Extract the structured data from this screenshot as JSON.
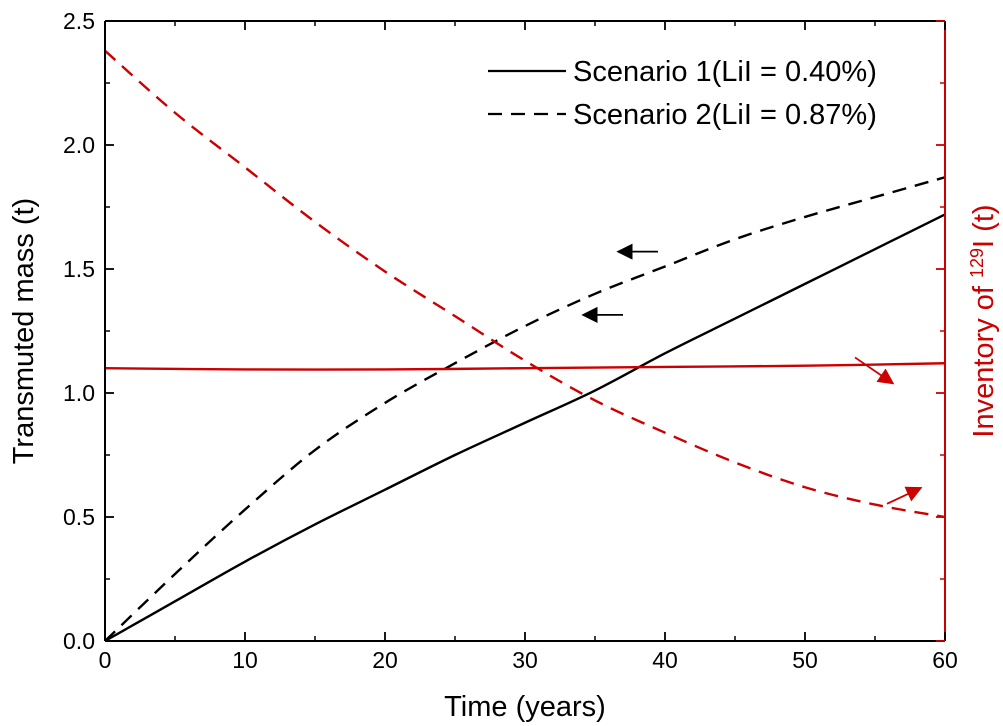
{
  "chart_data": {
    "type": "line",
    "title": "",
    "xlabel": "Time (years)",
    "ylabel_left": "Transmuted mass (t)",
    "ylabel_right": {
      "prefix": "Inventory of ",
      "superscript": "129",
      "suffix": "I (t)"
    },
    "xlim": [
      0,
      60
    ],
    "ylim_left": [
      0,
      2.5
    ],
    "x_ticks": [
      "0",
      "10",
      "20",
      "30",
      "40",
      "50",
      "60"
    ],
    "y_ticks_left": [
      "0.0",
      "0.5",
      "1.0",
      "1.5",
      "2.0",
      "2.5"
    ],
    "grid": false,
    "legend_position": "top-right",
    "legend": [
      {
        "label": "Scenario 1(LiI = 0.40%)",
        "style": "solid"
      },
      {
        "label": "Scenario 2(LiI = 0.87%)",
        "style": "dashed"
      }
    ],
    "colors": {
      "axis_left": "#000000",
      "axis_right": "#cc0000"
    },
    "series": [
      {
        "name": "Scenario 1 transmuted mass",
        "axis": "left",
        "color": "#000000",
        "style": "solid",
        "x": [
          0,
          5,
          10,
          15,
          20,
          25,
          30,
          35,
          40,
          45,
          50,
          55,
          60
        ],
        "y": [
          0,
          0.16,
          0.32,
          0.47,
          0.61,
          0.75,
          0.88,
          1.01,
          1.16,
          1.3,
          1.44,
          1.58,
          1.72
        ]
      },
      {
        "name": "Scenario 2 transmuted mass",
        "axis": "left",
        "color": "#000000",
        "style": "dashed",
        "x": [
          0,
          5,
          10,
          15,
          20,
          25,
          30,
          35,
          40,
          45,
          50,
          55,
          60
        ],
        "y": [
          0,
          0.27,
          0.53,
          0.77,
          0.96,
          1.12,
          1.27,
          1.4,
          1.51,
          1.62,
          1.71,
          1.79,
          1.87
        ]
      },
      {
        "name": "Scenario 1 inventory of 129I",
        "axis": "right",
        "color": "#cc0000",
        "style": "solid",
        "x": [
          0,
          10,
          20,
          30,
          40,
          50,
          60
        ],
        "y": [
          1.1,
          1.095,
          1.095,
          1.1,
          1.105,
          1.11,
          1.12
        ]
      },
      {
        "name": "Scenario 2 inventory of 129I",
        "axis": "right",
        "color": "#cc0000",
        "style": "dashed",
        "x": [
          0,
          5,
          10,
          15,
          20,
          25,
          30,
          35,
          40,
          45,
          50,
          55,
          60
        ],
        "y": [
          2.38,
          2.13,
          1.91,
          1.69,
          1.49,
          1.31,
          1.13,
          0.97,
          0.84,
          0.72,
          0.62,
          0.55,
          0.5
        ]
      }
    ],
    "annotations": [
      {
        "type": "arrow",
        "color": "#000000",
        "target_axis": "left",
        "at": [
          37,
          1.315
        ],
        "direction": "left"
      },
      {
        "type": "arrow",
        "color": "#000000",
        "target_axis": "left",
        "at": [
          39.5,
          1.57
        ],
        "direction": "left"
      },
      {
        "type": "arrow",
        "color": "#cc0000",
        "target_axis": "right",
        "at": [
          55,
          1.095
        ],
        "direction": "right"
      },
      {
        "type": "arrow",
        "color": "#cc0000",
        "target_axis": "right",
        "at": [
          57,
          0.545
        ],
        "direction": "right"
      }
    ]
  }
}
